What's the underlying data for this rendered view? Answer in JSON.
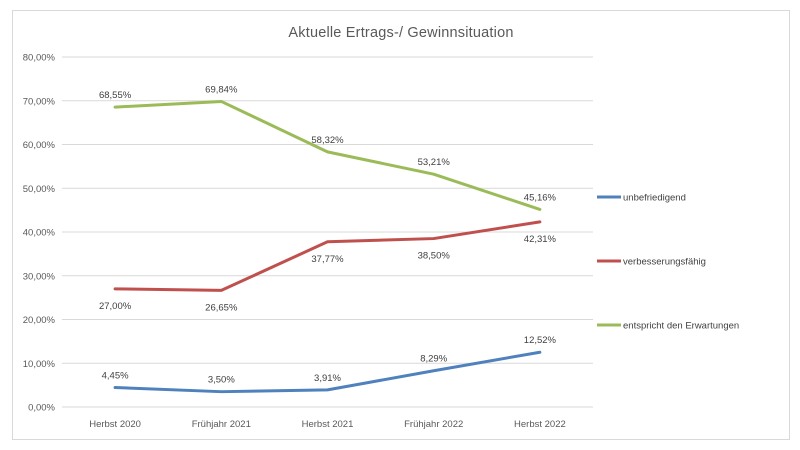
{
  "chart_data": {
    "type": "line",
    "title": "Aktuelle Ertrags-/ Gewinnsituation",
    "categories": [
      "Herbst 2020",
      "Frühjahr 2021",
      "Herbst 2021",
      "Frühjahr 2022",
      "Herbst 2022"
    ],
    "y_axis": {
      "min": 0,
      "max": 80,
      "step": 10,
      "tick_labels": [
        "0,00%",
        "10,00%",
        "20,00%",
        "30,00%",
        "40,00%",
        "50,00%",
        "60,00%",
        "70,00%",
        "80,00%"
      ]
    },
    "series": [
      {
        "name": "unbefriedigend",
        "color": "#4F81BD",
        "values": [
          4.45,
          3.5,
          3.91,
          8.29,
          12.52
        ],
        "labels": [
          "4,45%",
          "3,50%",
          "3,91%",
          "8,29%",
          "12,52%"
        ],
        "label_position": "above"
      },
      {
        "name": "verbesserungsfähig",
        "color": "#C0504D",
        "values": [
          27.0,
          26.65,
          37.77,
          38.5,
          42.31
        ],
        "labels": [
          "27,00%",
          "26,65%",
          "37,77%",
          "38,50%",
          "42,31%"
        ],
        "label_position": "below"
      },
      {
        "name": "entspricht den Erwartungen",
        "color": "#9BBB59",
        "values": [
          68.55,
          69.84,
          58.32,
          53.21,
          45.16
        ],
        "labels": [
          "68,55%",
          "69,84%",
          "58,32%",
          "53,21%",
          "45,16%"
        ],
        "label_position": "above"
      }
    ],
    "legend": {
      "position": "right",
      "entries": [
        "unbefriedigend",
        "verbesserungsfähig",
        "entspricht den Erwartungen"
      ]
    },
    "grid": true
  },
  "colors": {
    "background": "#FFFFFF",
    "border": "#D9D9D9",
    "grid": "#D9D9D9",
    "axis_text": "#595959",
    "label_text": "#404040",
    "title_text": "#595959"
  }
}
